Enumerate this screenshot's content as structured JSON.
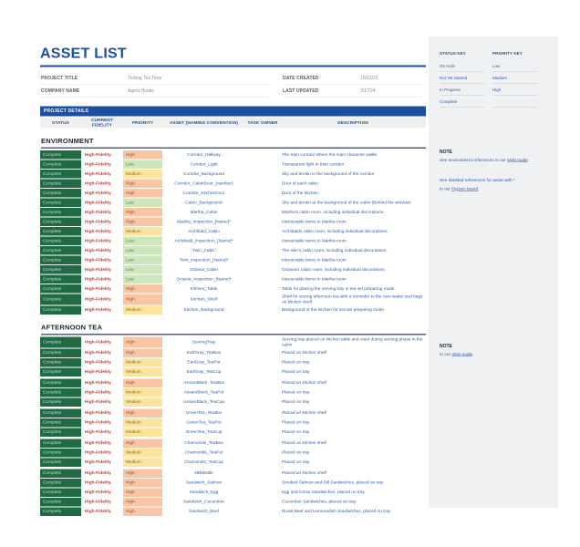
{
  "page": {
    "title": "ASSET LIST"
  },
  "meta": {
    "fields_left": [
      {
        "label": "PROJECT TITLE",
        "value": "Ticking Tea Time"
      },
      {
        "label": "COMPANY NAME",
        "value": "Agent Honks"
      }
    ],
    "fields_right": [
      {
        "label": "DATE CREATED",
        "value": "10/12/23"
      },
      {
        "label": "LAST UPDATED",
        "value": "2/17/24"
      }
    ]
  },
  "table": {
    "banner": "PROJECT DETAILS",
    "columns": [
      "STATUS",
      "CURRENT FIDELITY",
      "PRIORITY",
      "ASSET (NAMING CONVENTION)",
      "TASK OWNER",
      "DESCRIPTION"
    ],
    "sections": [
      {
        "title": "ENVIRONMENT",
        "rows": [
          {
            "status": "Complete",
            "fidelity": "High-Fidelity",
            "priority": "High",
            "asset": "Corridor_Hallway",
            "owner": "",
            "description": "The train corridor where the main character walks"
          },
          {
            "status": "Complete",
            "fidelity": "High-Fidelity",
            "priority": "Low",
            "asset": "Corridor_Light",
            "owner": "",
            "description": "Transparent light in train corridor"
          },
          {
            "status": "Complete",
            "fidelity": "High-Fidelity",
            "priority": "Medium",
            "asset": "Corridor_Background",
            "owner": "",
            "description": "Sky and terrain in the background of the corridor"
          },
          {
            "status": "Complete",
            "fidelity": "High-Fidelity",
            "priority": "High",
            "asset": "Corridor_CabinDoor_(number)",
            "owner": "",
            "description": "Door of each cabin"
          },
          {
            "status": "Complete",
            "fidelity": "High-Fidelity",
            "priority": "High",
            "asset": "Corridor_KitchenDoor",
            "owner": "",
            "description": "Door of the kitchen"
          },
          {
            "status": "Complete",
            "fidelity": "High-Fidelity",
            "priority": "Low",
            "asset": "Cabin_Background",
            "owner": "",
            "description": "Sky and terrain at the background of the cabin (Behind the window)"
          },
          {
            "status": "Complete",
            "fidelity": "High-Fidelity",
            "priority": "High",
            "asset": "Martha_Cabin",
            "owner": "",
            "description": "Martha's cabin room, including individual decorations."
          },
          {
            "status": "Complete",
            "fidelity": "High-Fidelity",
            "priority": "High",
            "asset": "Martha_Inspection_[Name]*",
            "owner": "",
            "description": "Interactable items in Martha room"
          },
          {
            "status": "Complete",
            "fidelity": "High-Fidelity",
            "priority": "Medium",
            "asset": "Archibald_Cabin",
            "owner": "",
            "description": "Archibalds cabin room, including individual decorations."
          },
          {
            "status": "Complete",
            "fidelity": "High-Fidelity",
            "priority": "Low",
            "asset": "Archibald_Inspection_[Name]*",
            "owner": "",
            "description": "Interactable items in Martha room"
          },
          {
            "status": "Complete",
            "fidelity": "High-Fidelity",
            "priority": "Low",
            "asset": "Twin_Cabin",
            "owner": "",
            "description": "The twin's cabin room, including individual decorations."
          },
          {
            "status": "Complete",
            "fidelity": "High-Fidelity",
            "priority": "Low",
            "asset": "Twin_Inspection_[Name]*",
            "owner": "",
            "description": "Interactable items in Martha room"
          },
          {
            "status": "Complete",
            "fidelity": "High-Fidelity",
            "priority": "Low",
            "asset": "Octavia_Cabin",
            "owner": "",
            "description": "Octavia's cabin room, including individual decorations."
          },
          {
            "status": "Complete",
            "fidelity": "High-Fidelity",
            "priority": "Low",
            "asset": "Octavia_Inspection_[Name]*",
            "owner": "",
            "description": "Interactable items in Martha room"
          },
          {
            "status": "Complete",
            "fidelity": "High-Fidelity",
            "priority": "High",
            "asset": "Kitchen_Table",
            "owner": "",
            "description": "Table for placing the serving tray in tea set preparing mode"
          },
          {
            "status": "Complete",
            "fidelity": "High-Fidelity",
            "priority": "High",
            "asset": "Kitchen_Shelf",
            "owner": "",
            "description": "Shelf for storing afternoon tea with a reminder to the new waiter and bags on kitchen shelf"
          },
          {
            "status": "Complete",
            "fidelity": "High-Fidelity",
            "priority": "Medium",
            "asset": "Kitchen_Background",
            "owner": "",
            "description": "Background of the kitchen for tea set preparing mode"
          }
        ]
      },
      {
        "title": "AFTERNOON TEA",
        "rows": [
          {
            "status": "Complete",
            "fidelity": "High-Fidelity",
            "priority": "High",
            "asset": "ServingTray",
            "owner": "",
            "description": "Serving tray placed on kitchen table and used during serving phase in the cabin"
          },
          {
            "status": "Complete",
            "fidelity": "High-Fidelity",
            "priority": "High",
            "asset": "EarlGray_TeaBox",
            "owner": "",
            "description": "Placed on kitchen shelf"
          },
          {
            "status": "Complete",
            "fidelity": "High-Fidelity",
            "priority": "Medium",
            "asset": "EarlGray_TeaPot",
            "owner": "",
            "description": "Placed on tray"
          },
          {
            "status": "Complete",
            "fidelity": "High-Fidelity",
            "priority": "Medium",
            "asset": "EarlGray_TeaCup",
            "owner": "",
            "description": "Placed on tray"
          },
          {
            "status": "Complete",
            "fidelity": "High-Fidelity",
            "priority": "High",
            "asset": "AssamBlack_TeaBox",
            "owner": "",
            "description": "Placed on kitchen shelf",
            "italic": true,
            "gap_before": true
          },
          {
            "status": "Complete",
            "fidelity": "High-Fidelity",
            "priority": "Medium",
            "asset": "AssamBlack_TeaPot",
            "owner": "",
            "description": "Placed on tray"
          },
          {
            "status": "Complete",
            "fidelity": "High-Fidelity",
            "priority": "Medium",
            "asset": "AssamBlack_TeaCup",
            "owner": "",
            "description": "Placed on tray"
          },
          {
            "status": "Complete",
            "fidelity": "High-Fidelity",
            "priority": "High",
            "asset": "GreenTea_TeaBox",
            "owner": "",
            "description": "Placed on kitchen shelf",
            "italic": true,
            "gap_before": true
          },
          {
            "status": "Complete",
            "fidelity": "High-Fidelity",
            "priority": "Medium",
            "asset": "GreenTea_TeaPot",
            "owner": "",
            "description": "Placed on tray"
          },
          {
            "status": "Complete",
            "fidelity": "High-Fidelity",
            "priority": "Medium",
            "asset": "GreenTea_TeaCup",
            "owner": "",
            "description": "Placed on tray"
          },
          {
            "status": "Complete",
            "fidelity": "High-Fidelity",
            "priority": "High",
            "asset": "Chamomile_TeaBox",
            "owner": "",
            "description": "Placed on kitchen shelf",
            "gap_before": true
          },
          {
            "status": "Complete",
            "fidelity": "High-Fidelity",
            "priority": "Medium",
            "asset": "Chamomile_TeaPot",
            "owner": "",
            "description": "Placed on tray"
          },
          {
            "status": "Complete",
            "fidelity": "High-Fidelity",
            "priority": "Medium",
            "asset": "Chamomile_TeaCup",
            "owner": "",
            "description": "Placed on tray"
          },
          {
            "status": "Complete",
            "fidelity": "High-Fidelity",
            "priority": "High",
            "asset": "MilkBottle",
            "owner": "",
            "description": "Placed on kitchen shelf",
            "italic": true,
            "gap_before": true
          },
          {
            "status": "Complete",
            "fidelity": "High-Fidelity",
            "priority": "High",
            "asset": "Sandwich_Salmon",
            "owner": "",
            "description": "Smoked Salmon and Dill Sandwiches, placed on tray"
          },
          {
            "status": "Complete",
            "fidelity": "High-Fidelity",
            "priority": "High",
            "asset": "Sandwich_Egg",
            "owner": "",
            "description": "Egg and Cress Sandwiches, placed on tray"
          },
          {
            "status": "Complete",
            "fidelity": "High-Fidelity",
            "priority": "High",
            "asset": "Sandwich_Cucumber",
            "owner": "",
            "description": "Cucumber Sandwiches, placed on tray"
          },
          {
            "status": "Complete",
            "fidelity": "High-Fidelity",
            "priority": "High",
            "asset": "Sandwich_Beef",
            "owner": "",
            "description": "Roast Beef and Horseradish Sandwiches, placed on tray"
          }
        ]
      }
    ]
  },
  "sidebar": {
    "status_key": {
      "title": "STATUS KEY",
      "items": [
        "On Hold",
        "Not Yet Started",
        "In Progress",
        "Complete"
      ]
    },
    "priority_key": {
      "title": "PRIORITY KEY",
      "items": [
        "Low",
        "Medium",
        "High",
        ""
      ]
    },
    "note1": {
      "title": "NOTE",
      "line1_prefix": "See environment references in our ",
      "line1_link": "style guide",
      "line2": "See detailed references for asset with *",
      "line3_prefix": "in our ",
      "line3_link": "FigJam board"
    },
    "note2": {
      "title": "NOTE",
      "line_prefix": "In our ",
      "line_link": "style guide"
    }
  },
  "colors": {
    "accent_blue": "#1D4F9E",
    "link_blue": "#2F5DA8",
    "status_complete_bg": "#206B44",
    "status_complete_text": "#BCDFC9",
    "fidelity_text": "#C13B33",
    "priority_high_bg": "#F8C6A4",
    "priority_medium_bg": "#FBE49D",
    "priority_low_bg": "#CEE6BB",
    "sidebar_bg": "#EFF1F3"
  }
}
